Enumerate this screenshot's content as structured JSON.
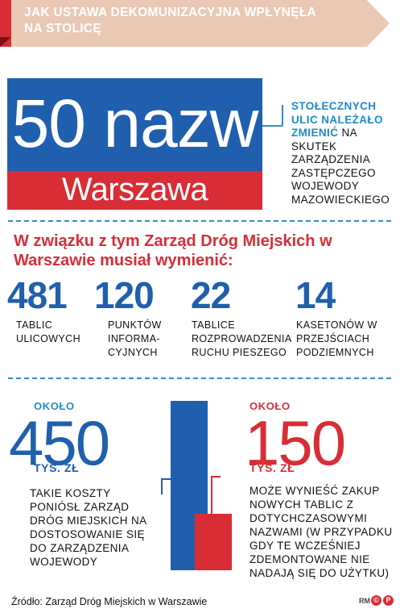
{
  "header": {
    "title": "JAK USTAWA DEKOMUNIZACYJNA WPŁYNĘŁA NA STOLICĘ",
    "colors": {
      "red": "#d92d36",
      "band": "#e9c9b3",
      "blue": "#1f5fae"
    }
  },
  "sign": {
    "number_text": "50 nazw",
    "city": "Warszawa"
  },
  "intro": {
    "highlight": "STOŁECZNYCH ULIC NALEŻAŁO ZMIENIĆ",
    "rest": "NA SKUTEK ZARZĄDZENIA ZASTĘPCZEGO WOJEWODY MAZOWIECKIEGO"
  },
  "replaced": {
    "heading": "W związku z tym Zarząd Dróg Miejskich w Warszawie musiał wymienić:",
    "items": [
      {
        "value": "481",
        "label": "TABLIC ULICOWYCH"
      },
      {
        "value": "120",
        "label": "PUNKTÓW INFORMA-CYJNYCH"
      },
      {
        "value": "22",
        "label": "TABLICE ROZPROWADZENIA RUCHU PIESZEGO"
      },
      {
        "value": "14",
        "label": "KASETONÓW W PRZEJŚCIACH PODZIEMNYCH"
      }
    ]
  },
  "costs": {
    "left": {
      "about": "OKOŁO",
      "value": "450",
      "unit": "TYS. ZŁ",
      "description": "TAKIE KOSZTY PONIÓSŁ ZARZĄD DRÓG MIEJSKICH NA DOSTOSOWANIE SIĘ DO ZARZĄDZENIA WOJEWODY"
    },
    "right": {
      "about": "OKOŁO",
      "value": "150",
      "unit": "TYS. ZŁ",
      "description": "MOŻE WYNIEŚĆ ZAKUP NOWYCH TABLIC Z DOTYCHCZASOWYMI NAZWAMI (W PRZYPADKU GDY TE WCZEŚNIEJ ZDEMONTOWANE NIE NADAJĄ SIĘ DO UŻYTKU)"
    },
    "bars": [
      {
        "name": "450 tys. zł",
        "value": 450,
        "color": "#1f5fae"
      },
      {
        "name": "150 tys. zł",
        "value": 150,
        "color": "#d92d36"
      }
    ]
  },
  "footer": {
    "source": "Źródło: Zarząd Dróg Miejskich w Warszawie",
    "credit": "RM"
  }
}
